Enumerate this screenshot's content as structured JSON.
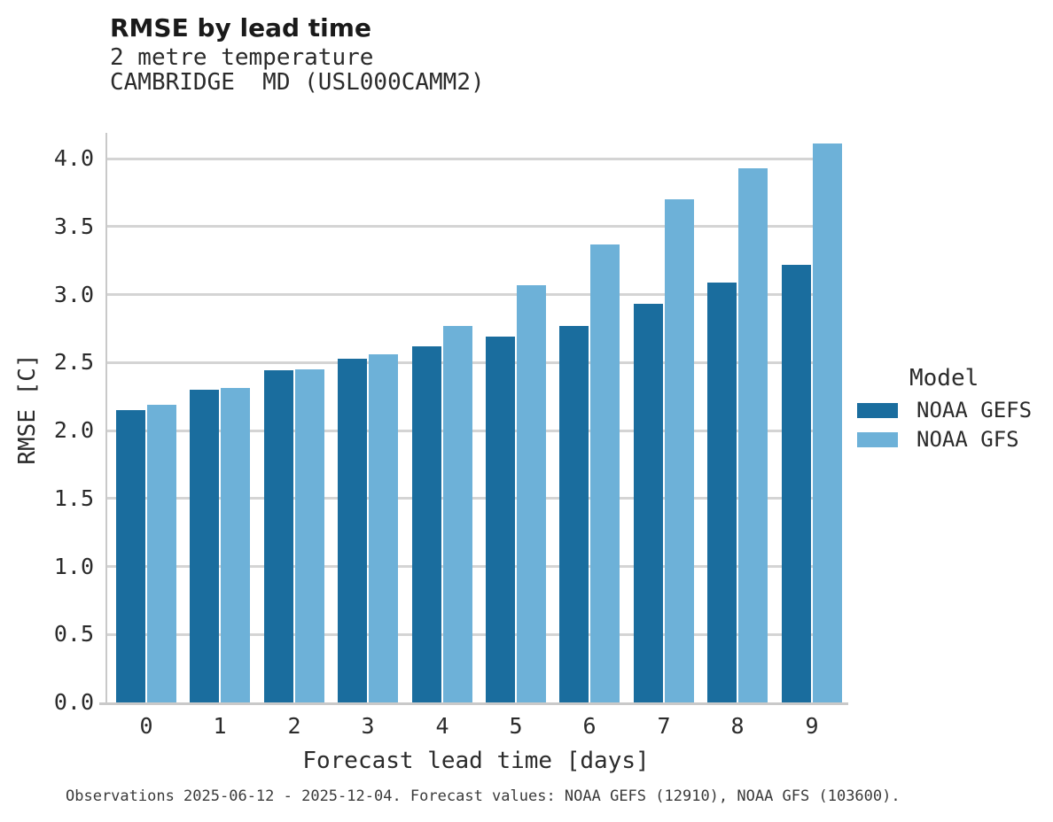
{
  "chart_data": {
    "type": "bar",
    "title": "RMSE by lead time",
    "subtitle": "2 metre temperature",
    "station": "CAMBRIDGE  MD (USL000CAMM2)",
    "xlabel": "Forecast lead time [days]",
    "ylabel": "RMSE [C]",
    "categories": [
      "0",
      "1",
      "2",
      "3",
      "4",
      "5",
      "6",
      "7",
      "8",
      "9"
    ],
    "series": [
      {
        "name": "NOAA GEFS",
        "color": "#1a6d9e",
        "values": [
          2.15,
          2.3,
          2.44,
          2.53,
          2.62,
          2.69,
          2.77,
          2.93,
          3.09,
          3.22
        ]
      },
      {
        "name": "NOAA GFS",
        "color": "#6db1d8",
        "values": [
          2.19,
          2.31,
          2.45,
          2.56,
          2.77,
          3.07,
          3.37,
          3.7,
          3.93,
          4.11
        ]
      }
    ],
    "ylim": [
      0.0,
      4.19
    ],
    "yticks": [
      "0.0",
      "0.5",
      "1.0",
      "1.5",
      "2.0",
      "2.5",
      "3.0",
      "3.5",
      "4.0"
    ],
    "grid": "horizontal",
    "legend": {
      "title": "Model",
      "position": "right"
    },
    "footer": "Observations 2025-06-12 - 2025-12-04. Forecast values: NOAA GEFS (12910), NOAA GFS (103600)."
  },
  "colors": {
    "gridline": "#d4d4d4",
    "spine": "#c9c9c9",
    "title_text": "#1a1a1a",
    "body_text": "#2b2b2b",
    "footer_text": "#3a3a3a"
  }
}
